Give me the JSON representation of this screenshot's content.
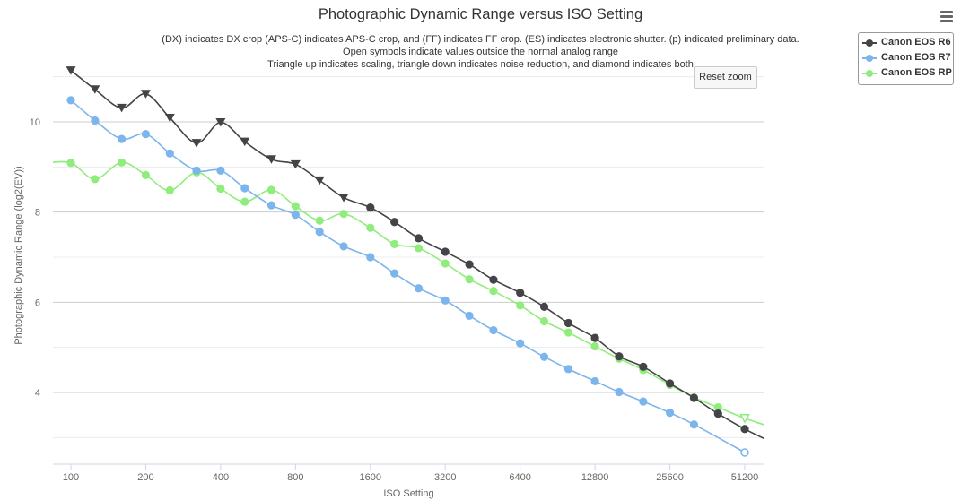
{
  "title": "Photographic Dynamic Range versus ISO Setting",
  "subtitle": [
    "(DX) indicates DX crop (APS-C) indicates APS-C crop, and (FF) indicates FF crop. (ES) indicates electronic shutter. (p) indicated preliminary data.",
    "Open symbols indicate values outside the normal analog range",
    "Triangle up indicates scaling, triangle down indicates noise reduction, and diamond indicates both"
  ],
  "reset_zoom_label": "Reset zoom",
  "menu_icon": "hamburger-menu-icon",
  "chart_data": {
    "type": "line",
    "title": "Photographic Dynamic Range versus ISO Setting",
    "xlabel": "ISO Setting",
    "ylabel": "Photographic Dynamic Range (log2(EV))",
    "x_scale": "log2",
    "x_ticks": [
      "100",
      "200",
      "400",
      "800",
      "1600",
      "3200",
      "6400",
      "12800",
      "25600",
      "51200"
    ],
    "y_ticks": [
      "4",
      "6",
      "8",
      "10"
    ],
    "ylim": [
      2.4,
      11.4
    ],
    "xlim": [
      80,
      64000
    ],
    "grid": true,
    "legend_position": "top-right",
    "series": [
      {
        "name": "Canon EOS R6",
        "color": "#434348",
        "points": [
          {
            "x": 100,
            "y": 11.14,
            "marker": "triangle-down"
          },
          {
            "x": 125,
            "y": 10.72,
            "marker": "triangle-down"
          },
          {
            "x": 160,
            "y": 10.31,
            "marker": "triangle-down"
          },
          {
            "x": 200,
            "y": 10.62,
            "marker": "triangle-down"
          },
          {
            "x": 250,
            "y": 10.09,
            "marker": "triangle-down"
          },
          {
            "x": 320,
            "y": 9.53,
            "marker": "triangle-down"
          },
          {
            "x": 400,
            "y": 9.99,
            "marker": "triangle-down"
          },
          {
            "x": 500,
            "y": 9.56,
            "marker": "triangle-down"
          },
          {
            "x": 640,
            "y": 9.17,
            "marker": "triangle-down"
          },
          {
            "x": 800,
            "y": 9.06,
            "marker": "triangle-down"
          },
          {
            "x": 1000,
            "y": 8.7,
            "marker": "triangle-down"
          },
          {
            "x": 1250,
            "y": 8.32,
            "marker": "triangle-down"
          },
          {
            "x": 1600,
            "y": 8.1,
            "marker": "circle"
          },
          {
            "x": 2000,
            "y": 7.78,
            "marker": "circle"
          },
          {
            "x": 2500,
            "y": 7.42,
            "marker": "circle"
          },
          {
            "x": 3200,
            "y": 7.12,
            "marker": "circle"
          },
          {
            "x": 4000,
            "y": 6.84,
            "marker": "circle"
          },
          {
            "x": 5000,
            "y": 6.5,
            "marker": "circle"
          },
          {
            "x": 6400,
            "y": 6.21,
            "marker": "circle"
          },
          {
            "x": 8000,
            "y": 5.9,
            "marker": "circle"
          },
          {
            "x": 10000,
            "y": 5.54,
            "marker": "circle"
          },
          {
            "x": 12800,
            "y": 5.21,
            "marker": "circle"
          },
          {
            "x": 16000,
            "y": 4.8,
            "marker": "circle"
          },
          {
            "x": 20000,
            "y": 4.57,
            "marker": "circle"
          },
          {
            "x": 25600,
            "y": 4.2,
            "marker": "circle"
          },
          {
            "x": 32000,
            "y": 3.88,
            "marker": "circle"
          },
          {
            "x": 40000,
            "y": 3.53,
            "marker": "circle"
          },
          {
            "x": 51200,
            "y": 3.19,
            "marker": "circle"
          },
          {
            "x": 64000,
            "y": 2.93,
            "marker": "none"
          }
        ]
      },
      {
        "name": "Canon EOS R7",
        "color": "#7cb5ec",
        "points": [
          {
            "x": 100,
            "y": 10.48,
            "marker": "circle"
          },
          {
            "x": 125,
            "y": 10.03,
            "marker": "circle"
          },
          {
            "x": 160,
            "y": 9.62,
            "marker": "circle"
          },
          {
            "x": 200,
            "y": 9.73,
            "marker": "circle"
          },
          {
            "x": 250,
            "y": 9.3,
            "marker": "circle"
          },
          {
            "x": 320,
            "y": 8.92,
            "marker": "circle"
          },
          {
            "x": 400,
            "y": 8.92,
            "marker": "circle"
          },
          {
            "x": 500,
            "y": 8.53,
            "marker": "circle"
          },
          {
            "x": 640,
            "y": 8.15,
            "marker": "circle"
          },
          {
            "x": 800,
            "y": 7.94,
            "marker": "circle"
          },
          {
            "x": 1000,
            "y": 7.56,
            "marker": "circle"
          },
          {
            "x": 1250,
            "y": 7.24,
            "marker": "circle"
          },
          {
            "x": 1600,
            "y": 7.0,
            "marker": "circle"
          },
          {
            "x": 2000,
            "y": 6.64,
            "marker": "circle"
          },
          {
            "x": 2500,
            "y": 6.31,
            "marker": "circle"
          },
          {
            "x": 3200,
            "y": 6.04,
            "marker": "circle"
          },
          {
            "x": 4000,
            "y": 5.7,
            "marker": "circle"
          },
          {
            "x": 5000,
            "y": 5.38,
            "marker": "circle"
          },
          {
            "x": 6400,
            "y": 5.09,
            "marker": "circle"
          },
          {
            "x": 8000,
            "y": 4.79,
            "marker": "circle"
          },
          {
            "x": 10000,
            "y": 4.52,
            "marker": "circle"
          },
          {
            "x": 12800,
            "y": 4.25,
            "marker": "circle"
          },
          {
            "x": 16000,
            "y": 4.01,
            "marker": "circle"
          },
          {
            "x": 20000,
            "y": 3.8,
            "marker": "circle"
          },
          {
            "x": 25600,
            "y": 3.55,
            "marker": "circle"
          },
          {
            "x": 32000,
            "y": 3.29,
            "marker": "circle"
          },
          {
            "x": 51200,
            "y": 2.67,
            "marker": "circle-open"
          }
        ]
      },
      {
        "name": "Canon EOS RP",
        "color": "#90ed7d",
        "points": [
          {
            "x": 80,
            "y": 9.09,
            "marker": "none"
          },
          {
            "x": 100,
            "y": 9.09,
            "marker": "circle"
          },
          {
            "x": 125,
            "y": 8.73,
            "marker": "circle"
          },
          {
            "x": 160,
            "y": 9.1,
            "marker": "circle"
          },
          {
            "x": 200,
            "y": 8.82,
            "marker": "circle"
          },
          {
            "x": 250,
            "y": 8.48,
            "marker": "circle"
          },
          {
            "x": 320,
            "y": 8.88,
            "marker": "circle"
          },
          {
            "x": 400,
            "y": 8.52,
            "marker": "circle"
          },
          {
            "x": 500,
            "y": 8.23,
            "marker": "circle"
          },
          {
            "x": 640,
            "y": 8.49,
            "marker": "circle"
          },
          {
            "x": 800,
            "y": 8.13,
            "marker": "circle"
          },
          {
            "x": 1000,
            "y": 7.81,
            "marker": "circle"
          },
          {
            "x": 1250,
            "y": 7.96,
            "marker": "circle"
          },
          {
            "x": 1600,
            "y": 7.65,
            "marker": "circle"
          },
          {
            "x": 2000,
            "y": 7.29,
            "marker": "circle"
          },
          {
            "x": 2500,
            "y": 7.2,
            "marker": "circle"
          },
          {
            "x": 3200,
            "y": 6.86,
            "marker": "circle"
          },
          {
            "x": 4000,
            "y": 6.51,
            "marker": "circle"
          },
          {
            "x": 5000,
            "y": 6.25,
            "marker": "circle"
          },
          {
            "x": 6400,
            "y": 5.93,
            "marker": "circle"
          },
          {
            "x": 8000,
            "y": 5.58,
            "marker": "circle"
          },
          {
            "x": 10000,
            "y": 5.33,
            "marker": "circle"
          },
          {
            "x": 12800,
            "y": 5.02,
            "marker": "circle"
          },
          {
            "x": 16000,
            "y": 4.75,
            "marker": "circle"
          },
          {
            "x": 20000,
            "y": 4.5,
            "marker": "circle"
          },
          {
            "x": 25600,
            "y": 4.17,
            "marker": "circle"
          },
          {
            "x": 32000,
            "y": 3.89,
            "marker": "circle"
          },
          {
            "x": 40000,
            "y": 3.67,
            "marker": "circle"
          },
          {
            "x": 51200,
            "y": 3.43,
            "marker": "triangle-down-open"
          },
          {
            "x": 64000,
            "y": 3.25,
            "marker": "none"
          }
        ]
      }
    ]
  }
}
